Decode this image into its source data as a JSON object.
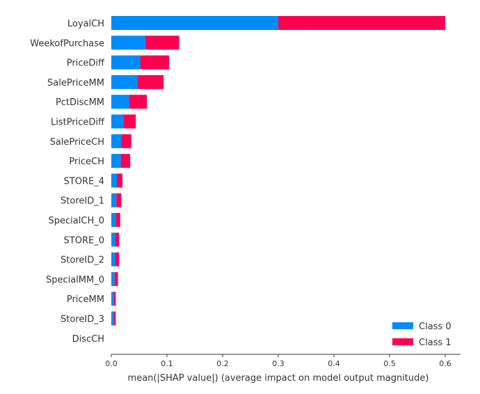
{
  "chart_data": {
    "type": "bar",
    "orientation": "horizontal",
    "stacked": true,
    "categories": [
      "LoyalCH",
      "WeekofPurchase",
      "PriceDiff",
      "SalePriceMM",
      "PctDiscMM",
      "ListPriceDiff",
      "SalePriceCH",
      "PriceCH",
      "STORE_4",
      "StoreID_1",
      "SpecialCH_0",
      "STORE_0",
      "StoreID_2",
      "SpecialMM_0",
      "PriceMM",
      "StoreID_3",
      "DiscCH"
    ],
    "series": [
      {
        "name": "Class 0",
        "color": "#008bfb",
        "values": [
          0.3,
          0.061,
          0.052,
          0.047,
          0.032,
          0.022,
          0.018,
          0.017,
          0.01,
          0.009,
          0.008,
          0.007,
          0.007,
          0.006,
          0.004,
          0.004,
          0.0
        ]
      },
      {
        "name": "Class 1",
        "color": "#ff0051",
        "values": [
          0.3,
          0.061,
          0.052,
          0.047,
          0.032,
          0.022,
          0.018,
          0.017,
          0.01,
          0.009,
          0.008,
          0.007,
          0.007,
          0.006,
          0.004,
          0.004,
          0.0
        ]
      }
    ],
    "xlabel": "mean(|SHAP value|) (average impact on model output magnitude)",
    "xlim": [
      0,
      0.63
    ],
    "xticks": [
      0.0,
      0.1,
      0.2,
      0.3,
      0.4,
      0.5,
      0.6
    ],
    "xtick_labels": [
      "0.0",
      "0.1",
      "0.2",
      "0.3",
      "0.4",
      "0.5",
      "0.6"
    ],
    "grid": false,
    "legend_position": "bottom-right"
  }
}
